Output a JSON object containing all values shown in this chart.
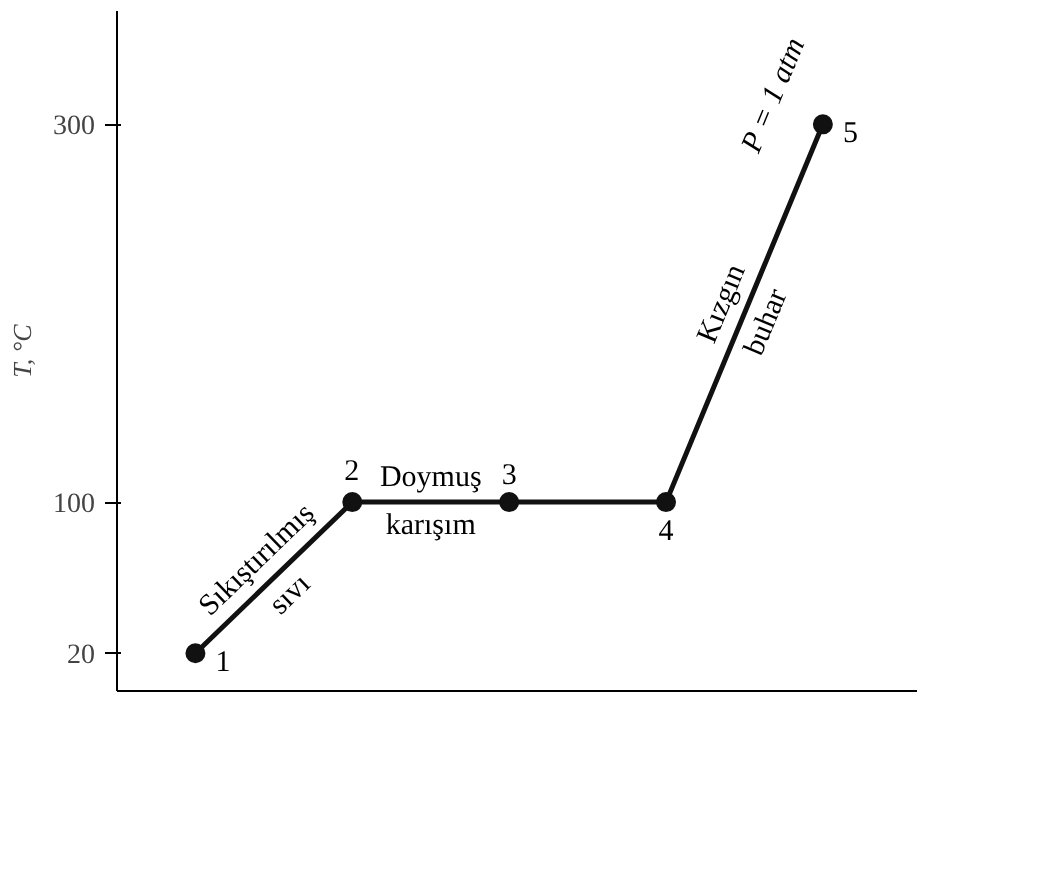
{
  "chart_data": {
    "type": "line",
    "ylabel": "T, °C",
    "categories": [
      null,
      null,
      null,
      null,
      null
    ],
    "series": [
      {
        "color": "#111111",
        "values": [
          20,
          100,
          100,
          100,
          300
        ]
      }
    ],
    "ylim": [
      0,
      360
    ],
    "yticks": [
      20,
      100,
      300
    ],
    "tick_labels": "y",
    "grid": false,
    "marker": "circle",
    "line_style": "solid",
    "annotations": [
      "1",
      "2",
      "3",
      "4",
      "5",
      "Sıkıştırılmış",
      "sıvı",
      "Doymuş",
      "karışım",
      "Kızgın",
      "buhar",
      "P = 1 atm"
    ]
  }
}
